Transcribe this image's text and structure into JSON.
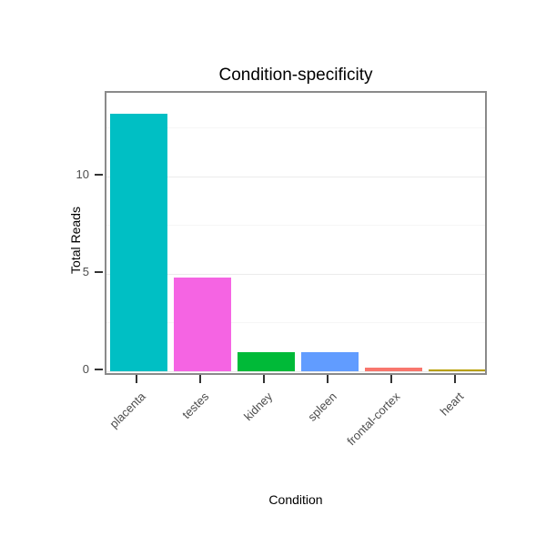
{
  "chart_data": {
    "type": "bar",
    "title": "Condition-specificity",
    "xlabel": "Condition",
    "ylabel": "Total Reads",
    "categories": [
      "placenta",
      "testes",
      "kidney",
      "spleen",
      "frontal-cortex",
      "heart"
    ],
    "values": [
      13.2,
      4.8,
      1.0,
      1.0,
      0.2,
      0.1
    ],
    "bar_colors": [
      "#00BFC4",
      "#F564E3",
      "#00BA38",
      "#619CFF",
      "#F8766D",
      "#B79F00"
    ],
    "ylim": [
      0,
      14
    ],
    "yticks": [
      0,
      5,
      10
    ],
    "ytick_labels": [
      "0",
      "5",
      "10"
    ],
    "grid": "horizontal-major-minor",
    "legend": "none",
    "panel_border_color": "#8a8a8a",
    "background_color": "#ffffff"
  }
}
